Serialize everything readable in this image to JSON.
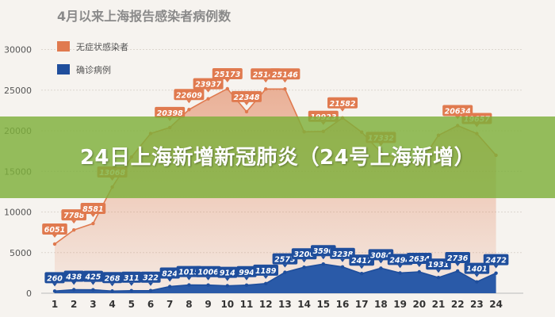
{
  "chart_data": {
    "type": "line",
    "title": "4月以来上海报告感染者病例数",
    "xlabel": "",
    "ylabel": "",
    "categories": [
      "1",
      "2",
      "3",
      "4",
      "5",
      "6",
      "7",
      "8",
      "9",
      "10",
      "11",
      "12",
      "13",
      "14",
      "15",
      "16",
      "17",
      "18",
      "19",
      "20",
      "21",
      "22",
      "23",
      "24"
    ],
    "ylim": [
      0,
      32000
    ],
    "yticks": [
      "0",
      "5000",
      "10000",
      "15000",
      "20000",
      "25000",
      "30000"
    ],
    "ytick_values": [
      0,
      5000,
      10000,
      15000,
      20000,
      25000,
      30000
    ],
    "grid": true,
    "legend": "top-left",
    "series": [
      {
        "name": "无症状感染者",
        "color": "#e07a4f",
        "values": [
          6051,
          7788,
          8581,
          13068,
          16766,
          19660,
          20398,
          22609,
          23937,
          25173,
          22348,
          25141,
          25146,
          19872,
          19923,
          21582,
          19831,
          17332,
          16407,
          15861,
          19442,
          20634,
          19657,
          16983
        ],
        "labels": [
          "6051",
          "7788",
          "8581",
          "13068",
          "",
          "",
          "20398",
          "22609",
          "23937",
          "25173",
          "22348",
          "25141",
          "25146",
          "",
          "19923",
          "21582",
          "",
          "17332",
          "",
          "",
          "",
          "20634",
          "19657",
          ""
        ]
      },
      {
        "name": "确诊病例",
        "color": "#1f4e9c",
        "values": [
          260,
          438,
          425,
          268,
          311,
          322,
          824,
          1015,
          1006,
          914,
          994,
          1189,
          2573,
          3200,
          3590,
          3238,
          2417,
          3084,
          2494,
          2634,
          1931,
          2736,
          1401,
          2472
        ],
        "labels": [
          "260",
          "438",
          "425",
          "268",
          "311",
          "322",
          "824",
          "1015",
          "1006",
          "914",
          "994",
          "1189",
          "2573",
          "3200",
          "3590",
          "3238",
          "2417",
          "3084",
          "2494",
          "2634",
          "1931",
          "2736",
          "1401",
          "2472"
        ]
      }
    ]
  },
  "overlay": {
    "headline": "24日上海新增新冠肺炎（24号上海新增）"
  }
}
